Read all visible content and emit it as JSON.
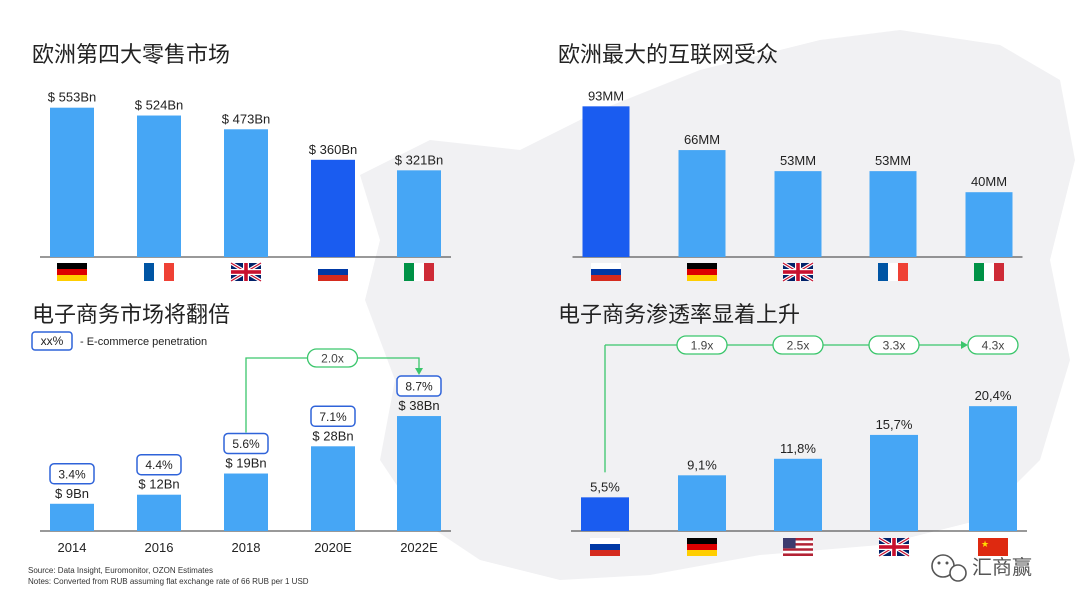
{
  "colors": {
    "bar": "#46A6F5",
    "highlight": "#1A5CF0",
    "pen_border": "#2F63D9",
    "arrow": "#3BC66C",
    "axis": "#333333",
    "map": "#F1F1F3"
  },
  "footer": {
    "source": "Source: Data Insight, Euromonitor, OZON Estimates",
    "notes": "Notes: Converted from RUB assuming flat exchange rate of 66 RUB per 1 USD"
  },
  "watermark": {
    "text": "汇商赢",
    "icon": "wechat-icon"
  },
  "chart_data": [
    {
      "type": "bar",
      "title": "欧洲第四大零售市场",
      "categories": [
        "Germany",
        "France",
        "UK",
        "Russia",
        "Italy"
      ],
      "flags": [
        "de",
        "fr",
        "gb",
        "ru",
        "it"
      ],
      "values": [
        553,
        524,
        473,
        360,
        321
      ],
      "value_labels": [
        "$ 553Bn",
        "$ 524Bn",
        "$ 473Bn",
        "$ 360Bn",
        "$ 321Bn"
      ],
      "highlight_index": 3,
      "ylim": [
        0,
        600
      ]
    },
    {
      "type": "bar",
      "title": "欧洲最大的互联网受众",
      "categories": [
        "Russia",
        "Germany",
        "UK",
        "France",
        "Italy"
      ],
      "flags": [
        "ru",
        "de",
        "gb",
        "fr",
        "it"
      ],
      "values": [
        93,
        66,
        53,
        53,
        40
      ],
      "value_labels": [
        "93MM",
        "66MM",
        "53MM",
        "53MM",
        "40MM"
      ],
      "highlight_index": 0,
      "ylim": [
        0,
        100
      ]
    },
    {
      "type": "bar",
      "title": "电子商务市场将翻倍",
      "legend": {
        "box": "xx%",
        "text": "- E-commerce penetration"
      },
      "categories": [
        "2014",
        "2016",
        "2018",
        "2020E",
        "2022E"
      ],
      "values": [
        9,
        12,
        19,
        28,
        38
      ],
      "value_labels": [
        "$ 9Bn",
        "$ 12Bn",
        "$ 19Bn",
        "$ 28Bn",
        "$ 38Bn"
      ],
      "penetration": [
        "3.4%",
        "4.4%",
        "5.6%",
        "7.1%",
        "8.7%"
      ],
      "growth": {
        "label": "2.0x",
        "from_index": 2,
        "to_index": 4
      },
      "ylim": [
        0,
        40
      ]
    },
    {
      "type": "bar",
      "title": "电子商务渗透率显着上升",
      "categories": [
        "Russia",
        "Germany",
        "USA",
        "UK",
        "China"
      ],
      "flags": [
        "ru",
        "de",
        "us",
        "gb",
        "cn"
      ],
      "values": [
        5.5,
        9.1,
        11.8,
        15.7,
        20.4
      ],
      "value_labels": [
        "5,5%",
        "9,1%",
        "11,8%",
        "15,7%",
        "20,4%"
      ],
      "highlight_index": 0,
      "multipliers": [
        "1.9x",
        "2.5x",
        "3.3x",
        "4.3x"
      ],
      "ylim": [
        0,
        25
      ]
    }
  ]
}
